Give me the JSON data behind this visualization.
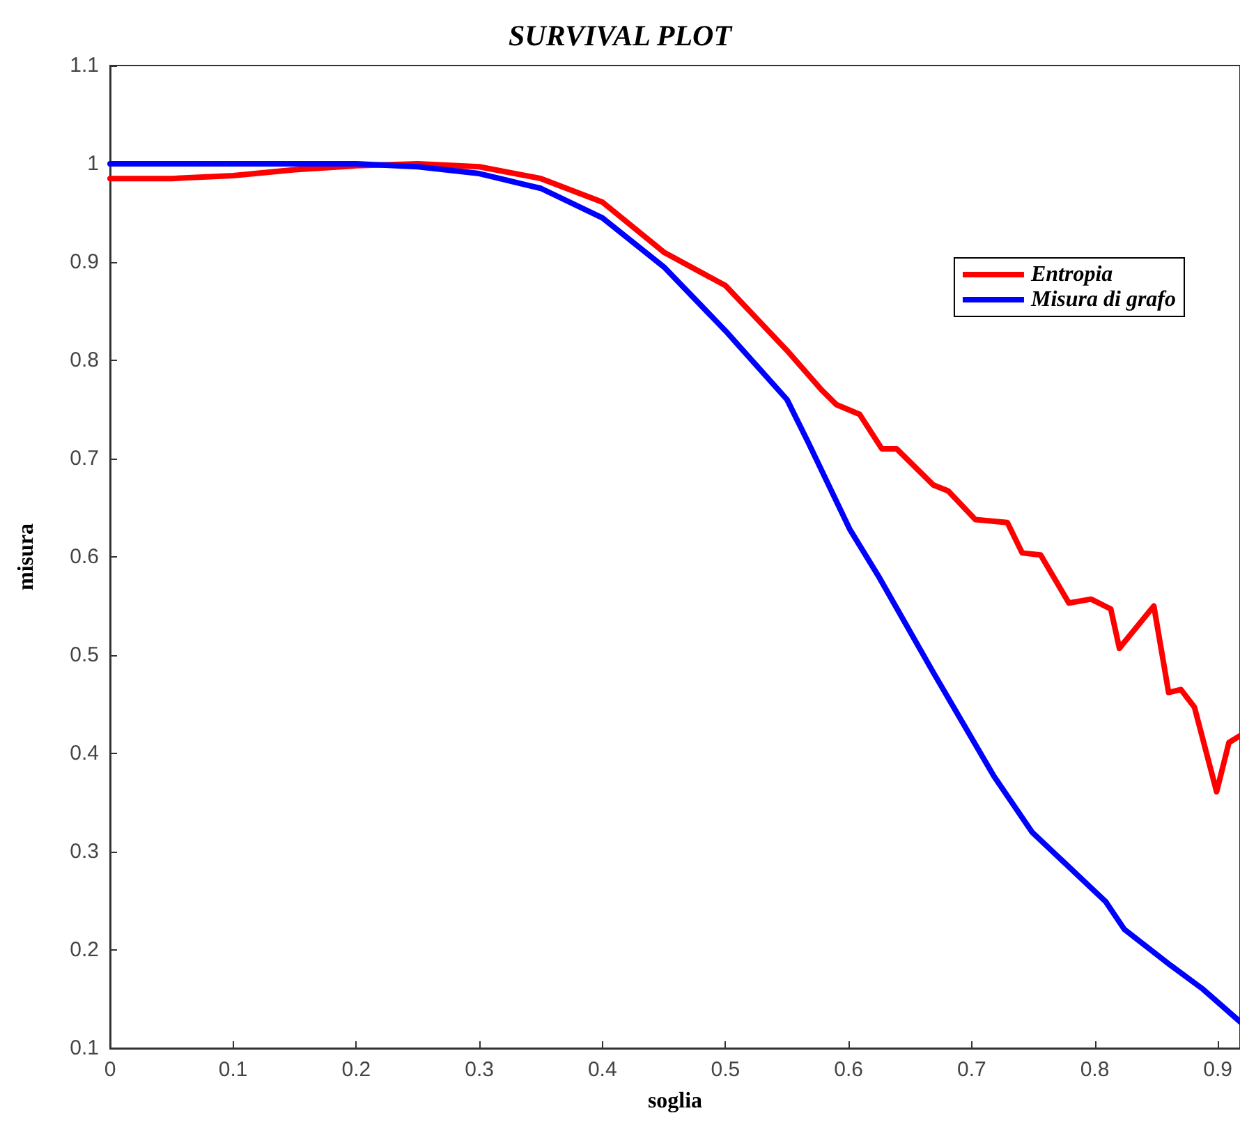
{
  "chart_data": {
    "type": "line",
    "title": "SURVIVAL PLOT",
    "xlabel": "soglia",
    "ylabel": "misura",
    "xlim": [
      0,
      0.918
    ],
    "xticks": [
      0,
      0.1,
      0.2,
      0.3,
      0.4,
      0.5,
      0.6,
      0.7,
      0.8,
      0.9
    ],
    "ylim": [
      0.1,
      1.1
    ],
    "yticks": [
      0.1,
      0.2,
      0.3,
      0.4,
      0.5,
      0.6,
      0.7,
      0.8,
      0.9,
      1,
      1.1
    ],
    "grid": false,
    "legend": "top right",
    "marker": "none",
    "line_style": "solid",
    "series": [
      {
        "name": "Entropia",
        "color": "#ff0000",
        "x": [
          0,
          0.05,
          0.1,
          0.15,
          0.2,
          0.25,
          0.3,
          0.35,
          0.4,
          0.45,
          0.5,
          0.55,
          0.578,
          0.59,
          0.609,
          0.627,
          0.639,
          0.669,
          0.681,
          0.703,
          0.729,
          0.741,
          0.756,
          0.779,
          0.797,
          0.813,
          0.82,
          0.848,
          0.86,
          0.87,
          0.881,
          0.899,
          0.909,
          0.918
        ],
        "values": [
          0.985,
          0.985,
          0.988,
          0.994,
          0.998,
          1.0,
          0.997,
          0.985,
          0.961,
          0.91,
          0.876,
          0.81,
          0.77,
          0.755,
          0.745,
          0.71,
          0.71,
          0.673,
          0.667,
          0.638,
          0.635,
          0.604,
          0.602,
          0.553,
          0.557,
          0.547,
          0.507,
          0.55,
          0.462,
          0.465,
          0.447,
          0.361,
          0.411,
          0.418
        ]
      },
      {
        "name": "Misura di grafo",
        "color": "#0000ff",
        "x": [
          0,
          0.1,
          0.2,
          0.25,
          0.3,
          0.35,
          0.4,
          0.45,
          0.5,
          0.55,
          0.567,
          0.601,
          0.624,
          0.669,
          0.718,
          0.749,
          0.809,
          0.824,
          0.862,
          0.888,
          0.918
        ],
        "values": [
          1.0,
          1.0,
          1.0,
          0.997,
          0.99,
          0.975,
          0.945,
          0.895,
          0.83,
          0.76,
          0.717,
          0.628,
          0.581,
          0.482,
          0.377,
          0.32,
          0.249,
          0.221,
          0.184,
          0.16,
          0.127
        ]
      }
    ]
  }
}
